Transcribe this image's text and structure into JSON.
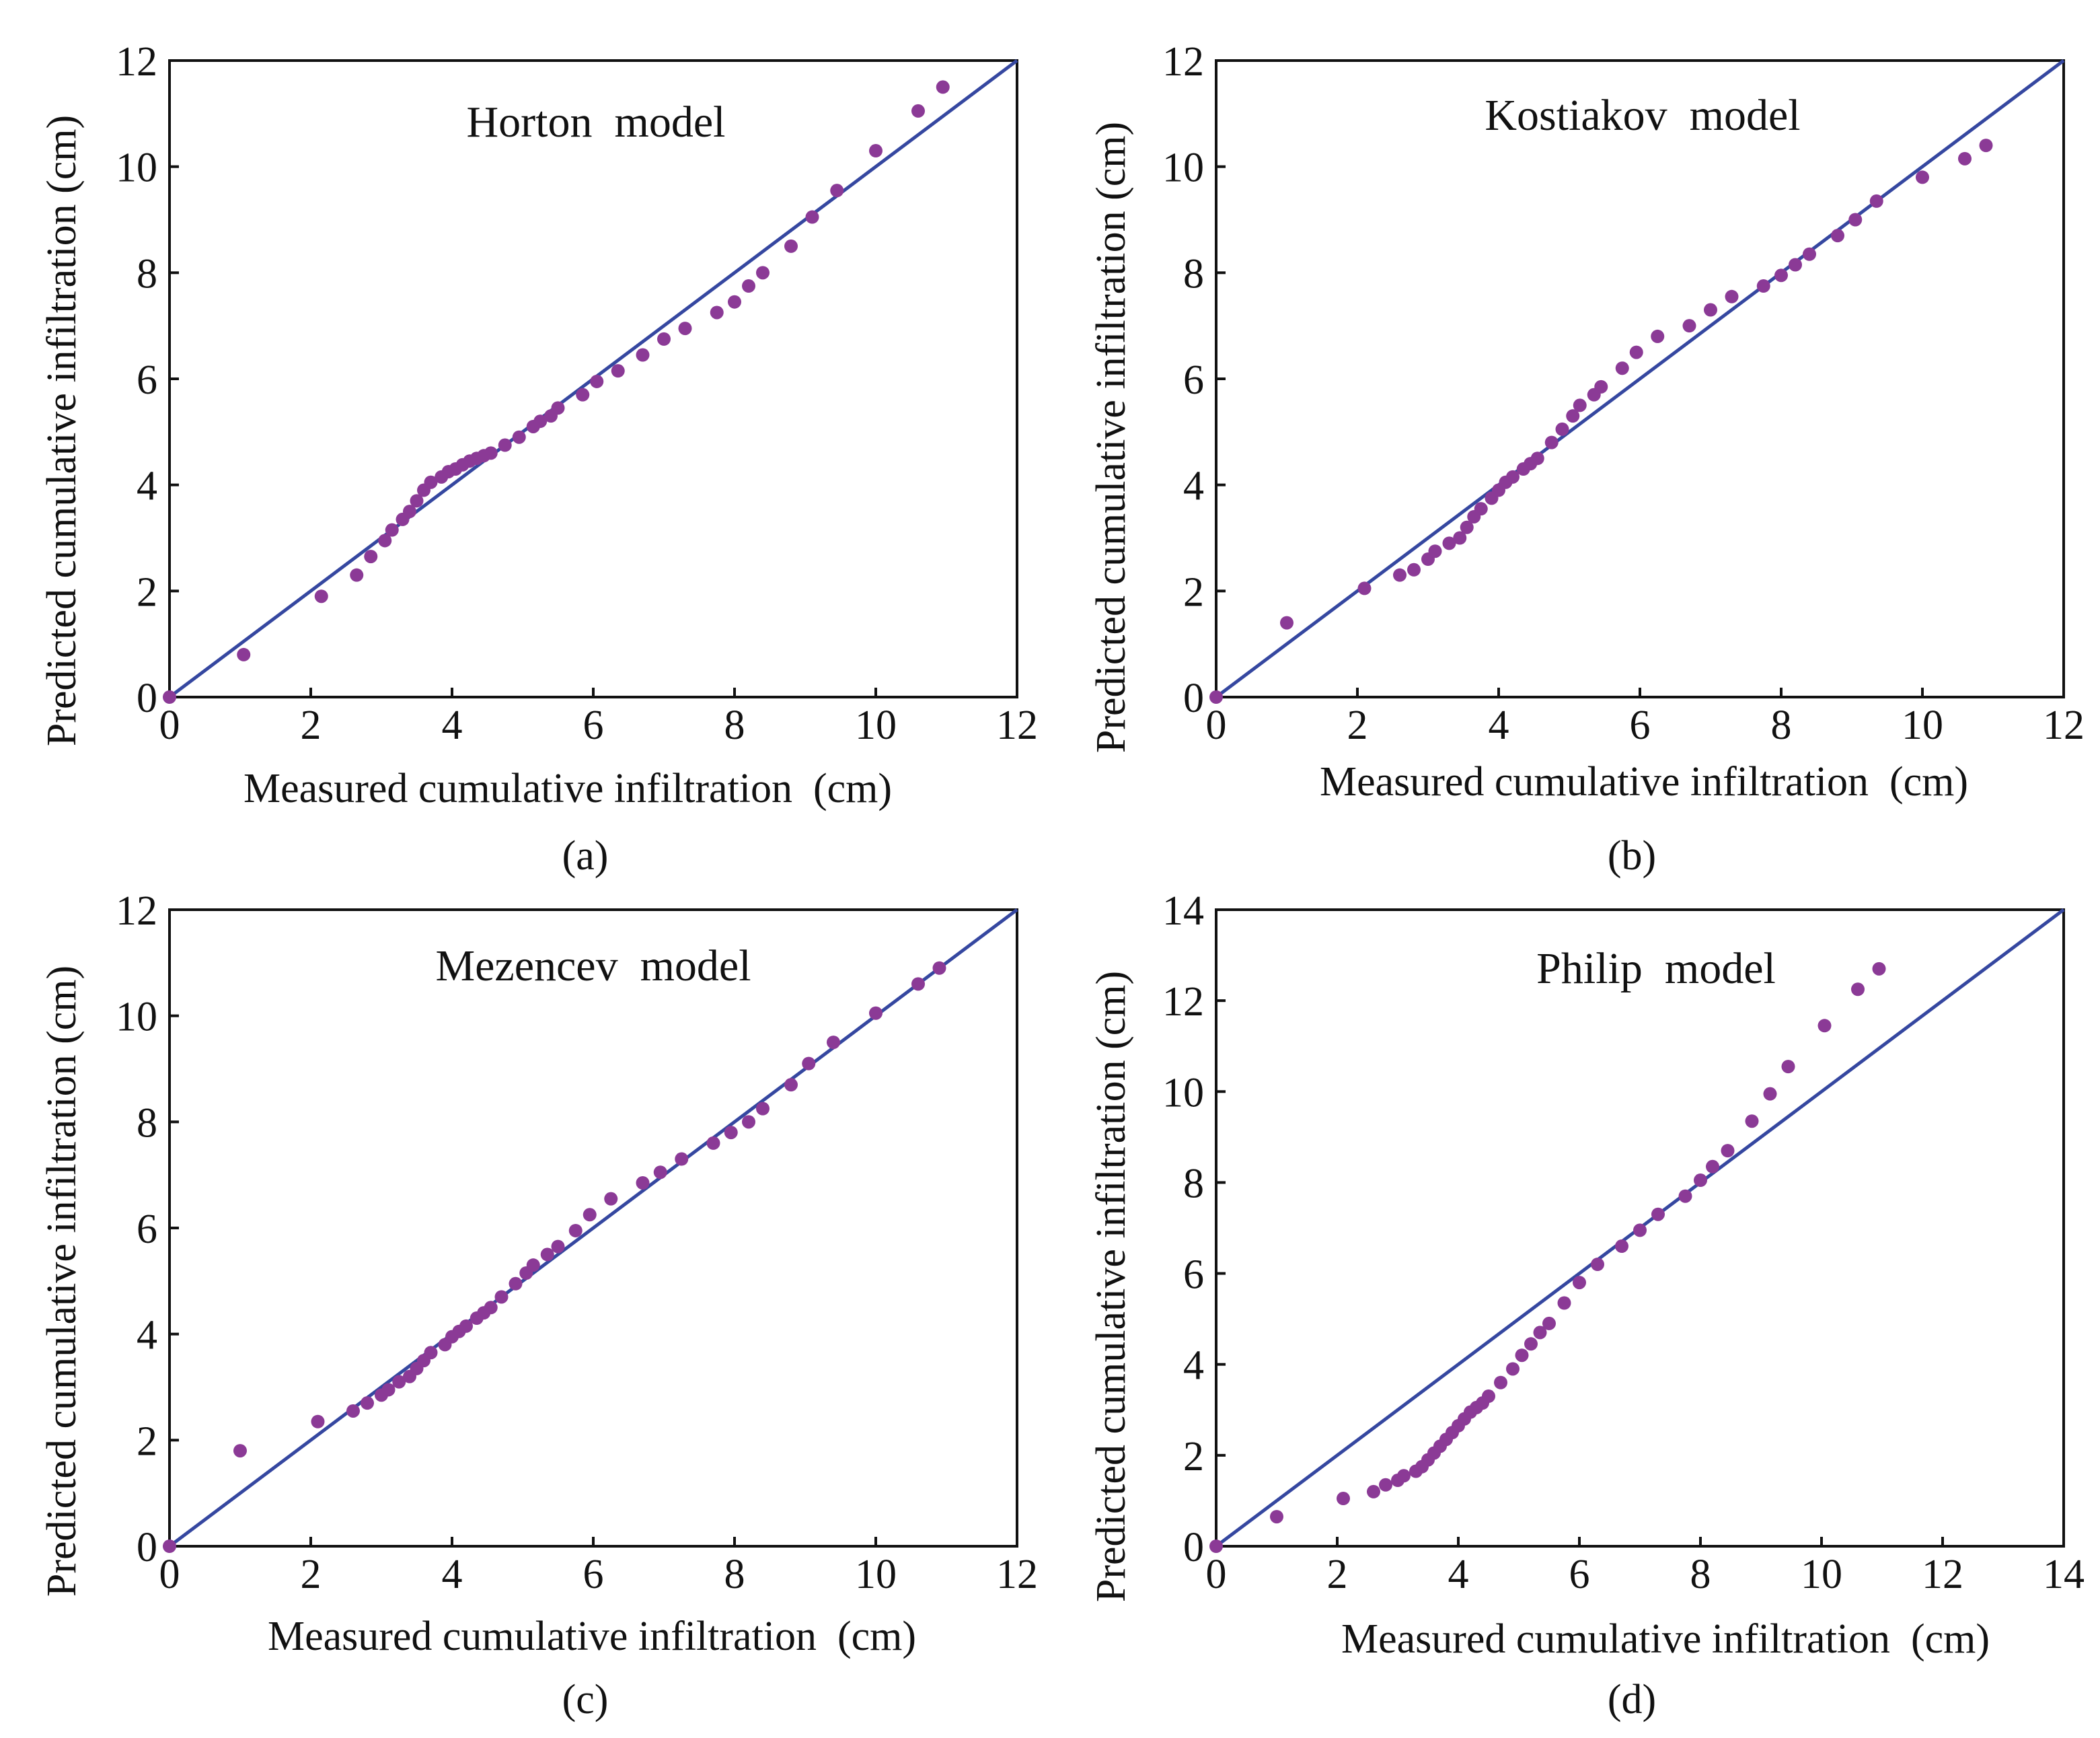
{
  "colors": {
    "point": "#8B3A96",
    "line": "#3547A0",
    "axis": "#111111"
  },
  "chart_data": [
    {
      "type": "scatter",
      "panel": "(a)",
      "title": "Horton  model",
      "xlabel": "Measured cumulative infiltration  (cm)",
      "ylabel": "Predicted cumulative infiltration (cm)",
      "xlim": [
        0,
        12
      ],
      "ylim": [
        0,
        12
      ],
      "xticks": [
        0,
        2,
        4,
        6,
        8,
        10,
        12
      ],
      "yticks": [
        0,
        2,
        4,
        6,
        8,
        10,
        12
      ],
      "reference_line": "1:1",
      "points": [
        [
          0,
          0
        ],
        [
          1.05,
          0.8
        ],
        [
          2.15,
          1.9
        ],
        [
          2.65,
          2.3
        ],
        [
          2.85,
          2.65
        ],
        [
          3.05,
          2.95
        ],
        [
          3.15,
          3.15
        ],
        [
          3.3,
          3.35
        ],
        [
          3.4,
          3.5
        ],
        [
          3.5,
          3.7
        ],
        [
          3.6,
          3.9
        ],
        [
          3.7,
          4.05
        ],
        [
          3.85,
          4.15
        ],
        [
          3.95,
          4.25
        ],
        [
          4.05,
          4.3
        ],
        [
          4.15,
          4.38
        ],
        [
          4.25,
          4.45
        ],
        [
          4.35,
          4.5
        ],
        [
          4.45,
          4.55
        ],
        [
          4.55,
          4.6
        ],
        [
          4.75,
          4.75
        ],
        [
          4.95,
          4.9
        ],
        [
          5.15,
          5.1
        ],
        [
          5.25,
          5.2
        ],
        [
          5.4,
          5.3
        ],
        [
          5.5,
          5.45
        ],
        [
          5.85,
          5.7
        ],
        [
          6.05,
          5.95
        ],
        [
          6.35,
          6.15
        ],
        [
          6.7,
          6.45
        ],
        [
          7.0,
          6.75
        ],
        [
          7.3,
          6.95
        ],
        [
          7.75,
          7.25
        ],
        [
          8.0,
          7.45
        ],
        [
          8.2,
          7.75
        ],
        [
          8.4,
          8.0
        ],
        [
          8.8,
          8.5
        ],
        [
          9.1,
          9.05
        ],
        [
          9.45,
          9.55
        ],
        [
          10.0,
          10.3
        ],
        [
          10.6,
          11.05
        ],
        [
          10.95,
          11.5
        ]
      ]
    },
    {
      "type": "scatter",
      "panel": "(b)",
      "title": "Kostiakov  model",
      "xlabel": "Measured cumulative infiltration  (cm)",
      "ylabel": "Predicted cumulative infiltration (cm)",
      "xlim": [
        0,
        12
      ],
      "ylim": [
        0,
        12
      ],
      "xticks": [
        0,
        2,
        4,
        6,
        8,
        10,
        12
      ],
      "yticks": [
        0,
        2,
        4,
        6,
        8,
        10,
        12
      ],
      "reference_line": "1:1",
      "points": [
        [
          0,
          0
        ],
        [
          1.0,
          1.4
        ],
        [
          2.1,
          2.05
        ],
        [
          2.6,
          2.3
        ],
        [
          2.8,
          2.4
        ],
        [
          3.0,
          2.6
        ],
        [
          3.1,
          2.75
        ],
        [
          3.3,
          2.9
        ],
        [
          3.45,
          3.0
        ],
        [
          3.55,
          3.2
        ],
        [
          3.65,
          3.4
        ],
        [
          3.75,
          3.55
        ],
        [
          3.9,
          3.75
        ],
        [
          4.0,
          3.9
        ],
        [
          4.1,
          4.05
        ],
        [
          4.2,
          4.15
        ],
        [
          4.35,
          4.3
        ],
        [
          4.45,
          4.4
        ],
        [
          4.55,
          4.5
        ],
        [
          4.75,
          4.8
        ],
        [
          4.9,
          5.05
        ],
        [
          5.05,
          5.3
        ],
        [
          5.15,
          5.5
        ],
        [
          5.35,
          5.7
        ],
        [
          5.45,
          5.85
        ],
        [
          5.75,
          6.2
        ],
        [
          5.95,
          6.5
        ],
        [
          6.25,
          6.8
        ],
        [
          6.7,
          7.0
        ],
        [
          7.0,
          7.3
        ],
        [
          7.3,
          7.55
        ],
        [
          7.75,
          7.75
        ],
        [
          8.0,
          7.95
        ],
        [
          8.2,
          8.15
        ],
        [
          8.4,
          8.35
        ],
        [
          8.8,
          8.7
        ],
        [
          9.05,
          9.0
        ],
        [
          9.35,
          9.35
        ],
        [
          10.0,
          9.8
        ],
        [
          10.6,
          10.15
        ],
        [
          10.9,
          10.4
        ]
      ]
    },
    {
      "type": "scatter",
      "panel": "(c)",
      "title": "Mezencev  model",
      "xlabel": "Measured cumulative infiltration  (cm)",
      "ylabel": "Predicted cumulative infiltration (cm)",
      "xlim": [
        0,
        12
      ],
      "ylim": [
        0,
        12
      ],
      "xticks": [
        0,
        2,
        4,
        6,
        8,
        10,
        12
      ],
      "yticks": [
        0,
        2,
        4,
        6,
        8,
        10,
        12
      ],
      "reference_line": "1:1",
      "points": [
        [
          0,
          0
        ],
        [
          1.0,
          1.8
        ],
        [
          2.1,
          2.35
        ],
        [
          2.6,
          2.55
        ],
        [
          2.8,
          2.7
        ],
        [
          3.0,
          2.85
        ],
        [
          3.1,
          2.95
        ],
        [
          3.25,
          3.1
        ],
        [
          3.4,
          3.2
        ],
        [
          3.5,
          3.35
        ],
        [
          3.6,
          3.5
        ],
        [
          3.7,
          3.65
        ],
        [
          3.9,
          3.8
        ],
        [
          4.0,
          3.95
        ],
        [
          4.1,
          4.05
        ],
        [
          4.2,
          4.15
        ],
        [
          4.35,
          4.3
        ],
        [
          4.45,
          4.4
        ],
        [
          4.55,
          4.5
        ],
        [
          4.7,
          4.7
        ],
        [
          4.9,
          4.95
        ],
        [
          5.05,
          5.15
        ],
        [
          5.15,
          5.3
        ],
        [
          5.35,
          5.5
        ],
        [
          5.5,
          5.65
        ],
        [
          5.75,
          5.95
        ],
        [
          5.95,
          6.25
        ],
        [
          6.25,
          6.55
        ],
        [
          6.7,
          6.85
        ],
        [
          6.95,
          7.05
        ],
        [
          7.25,
          7.3
        ],
        [
          7.7,
          7.6
        ],
        [
          7.95,
          7.8
        ],
        [
          8.2,
          8.0
        ],
        [
          8.4,
          8.25
        ],
        [
          8.8,
          8.7
        ],
        [
          9.05,
          9.1
        ],
        [
          9.4,
          9.5
        ],
        [
          10.0,
          10.05
        ],
        [
          10.6,
          10.6
        ],
        [
          10.9,
          10.9
        ]
      ]
    },
    {
      "type": "scatter",
      "panel": "(d)",
      "title": "Philip  model",
      "xlabel": "Measured cumulative infiltration  (cm)",
      "ylabel": "Predicted cumulative infiltration (cm)",
      "xlim": [
        0,
        14
      ],
      "ylim": [
        0,
        14
      ],
      "xticks": [
        0,
        2,
        4,
        6,
        8,
        10,
        12,
        14
      ],
      "yticks": [
        0,
        2,
        4,
        6,
        8,
        10,
        12,
        14
      ],
      "reference_line": "1:1",
      "points": [
        [
          0,
          0
        ],
        [
          1.0,
          0.65
        ],
        [
          2.1,
          1.05
        ],
        [
          2.6,
          1.2
        ],
        [
          2.8,
          1.35
        ],
        [
          3.0,
          1.45
        ],
        [
          3.1,
          1.55
        ],
        [
          3.3,
          1.65
        ],
        [
          3.4,
          1.75
        ],
        [
          3.5,
          1.9
        ],
        [
          3.6,
          2.05
        ],
        [
          3.7,
          2.2
        ],
        [
          3.8,
          2.35
        ],
        [
          3.9,
          2.5
        ],
        [
          4.0,
          2.65
        ],
        [
          4.1,
          2.8
        ],
        [
          4.2,
          2.95
        ],
        [
          4.3,
          3.05
        ],
        [
          4.4,
          3.15
        ],
        [
          4.5,
          3.3
        ],
        [
          4.7,
          3.6
        ],
        [
          4.9,
          3.9
        ],
        [
          5.05,
          4.2
        ],
        [
          5.2,
          4.45
        ],
        [
          5.35,
          4.7
        ],
        [
          5.5,
          4.9
        ],
        [
          5.75,
          5.35
        ],
        [
          6.0,
          5.8
        ],
        [
          6.3,
          6.2
        ],
        [
          6.7,
          6.6
        ],
        [
          7.0,
          6.95
        ],
        [
          7.3,
          7.3
        ],
        [
          7.75,
          7.7
        ],
        [
          8.0,
          8.05
        ],
        [
          8.2,
          8.35
        ],
        [
          8.45,
          8.7
        ],
        [
          8.85,
          9.35
        ],
        [
          9.15,
          9.95
        ],
        [
          9.45,
          10.55
        ],
        [
          10.05,
          11.45
        ],
        [
          10.6,
          12.25
        ],
        [
          10.95,
          12.7
        ]
      ]
    }
  ]
}
